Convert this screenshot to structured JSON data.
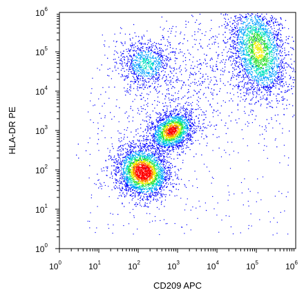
{
  "chart_data": {
    "type": "scatter",
    "subtype": "flow-cytometry-density-dot-plot",
    "xlabel": "CD209 APC",
    "ylabel": "HLA-DR PE",
    "x_scale": "log10",
    "y_scale": "log10",
    "xlim": [
      1,
      1000000
    ],
    "ylim": [
      1,
      1000000
    ],
    "x_ticks": [
      {
        "base": "10",
        "exp": "0",
        "value": 1
      },
      {
        "base": "10",
        "exp": "1",
        "value": 10
      },
      {
        "base": "10",
        "exp": "2",
        "value": 100
      },
      {
        "base": "10",
        "exp": "3",
        "value": 1000
      },
      {
        "base": "10",
        "exp": "4",
        "value": 10000
      },
      {
        "base": "10",
        "exp": "5",
        "value": 100000
      },
      {
        "base": "10",
        "exp": "6",
        "value": 1000000
      }
    ],
    "y_ticks": [
      {
        "base": "10",
        "exp": "0",
        "value": 1
      },
      {
        "base": "10",
        "exp": "1",
        "value": 10
      },
      {
        "base": "10",
        "exp": "2",
        "value": 100
      },
      {
        "base": "10",
        "exp": "3",
        "value": 1000
      },
      {
        "base": "10",
        "exp": "4",
        "value": 10000
      },
      {
        "base": "10",
        "exp": "5",
        "value": 100000
      },
      {
        "base": "10",
        "exp": "6",
        "value": 1000000
      }
    ],
    "grid": false,
    "legend": "none",
    "density_colormap": [
      "#0000ff",
      "#00a0ff",
      "#00e0c0",
      "#30e030",
      "#f0f000",
      "#ff8000",
      "#ff0000"
    ],
    "populations": [
      {
        "center_x": 130,
        "center_y": 90,
        "relative_density": 1.0
      },
      {
        "center_x": 700,
        "center_y": 1000,
        "relative_density": 0.85
      },
      {
        "center_x": 110000,
        "center_y": 110000,
        "relative_density": 0.55
      },
      {
        "center_x": 160,
        "center_y": 50000,
        "relative_density": 0.3
      },
      {
        "center_x": 3000,
        "center_y": 20000,
        "relative_density": 0.1
      }
    ]
  }
}
